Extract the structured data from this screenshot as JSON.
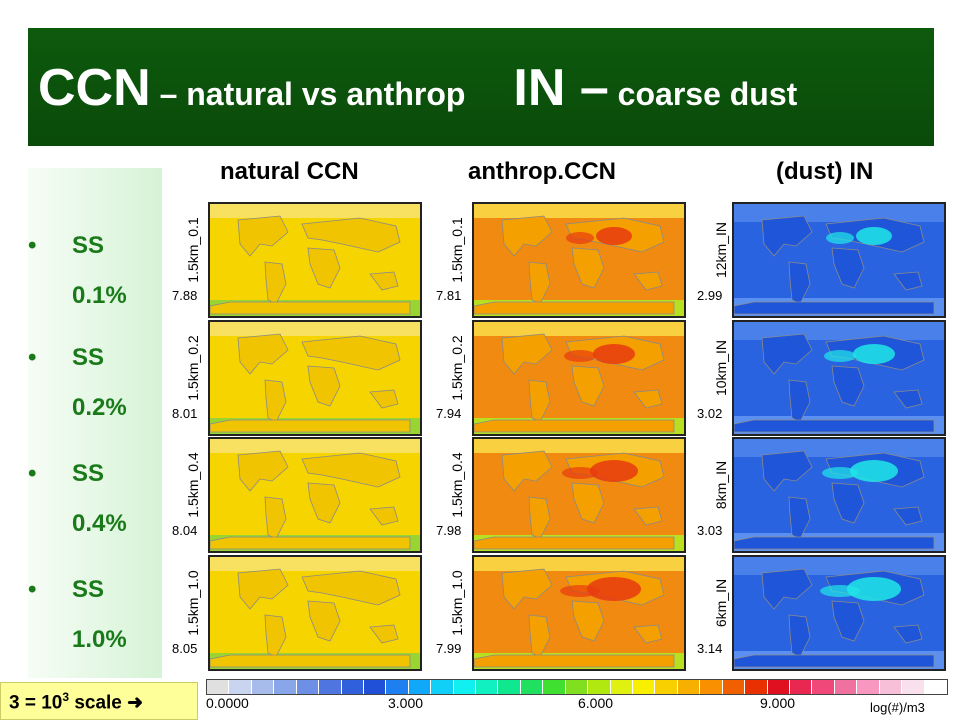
{
  "title": {
    "ccn": "CCN",
    "ccn_sub": " – natural vs anthrop",
    "in": "IN –",
    "in_sub": " coarse dust"
  },
  "bullets": [
    {
      "label": "SS",
      "value": "0.1%"
    },
    {
      "label": "SS",
      "value": "0.2%"
    },
    {
      "label": "SS",
      "value": "0.4%"
    },
    {
      "label": "SS",
      "value": "1.0%"
    }
  ],
  "columns": [
    "natural CCN",
    "anthrop.CCN",
    "(dust) IN"
  ],
  "panels": {
    "natural": [
      {
        "label": "1.5km_0.1",
        "value": "7.88"
      },
      {
        "label": "1.5km_0.2",
        "value": "8.01"
      },
      {
        "label": "1.5km_0.4",
        "value": "8.04"
      },
      {
        "label": "1.5km_1.0",
        "value": "8.05"
      }
    ],
    "anthrop": [
      {
        "label": "1.5km_0.1",
        "value": "7.81"
      },
      {
        "label": "1.5km_0.2",
        "value": "7.94"
      },
      {
        "label": "1.5km_0.4",
        "value": "7.98"
      },
      {
        "label": "1.5km_1.0",
        "value": "7.99"
      }
    ],
    "dust": [
      {
        "label": "12km_IN",
        "value": "2.99"
      },
      {
        "label": "10km_IN",
        "value": "3.02"
      },
      {
        "label": "8km_IN",
        "value": "3.03"
      },
      {
        "label": "6km_IN",
        "value": "3.14"
      }
    ]
  },
  "colorbar": {
    "ticks": [
      "0.0000",
      "3.000",
      "6.000",
      "9.000"
    ],
    "units": "log(#)/m3"
  },
  "scale_note": {
    "lhs": "3 = 10",
    "exp": "3",
    "rhs": " scale",
    "arrow": "➜"
  },
  "colors": {
    "title_bg": "#0a4a0a",
    "bullet_text": "#1a7a1a",
    "natural_map": "#f5d400",
    "anthrop_map": "#f08a10",
    "dust_map": "#2a63e0"
  }
}
